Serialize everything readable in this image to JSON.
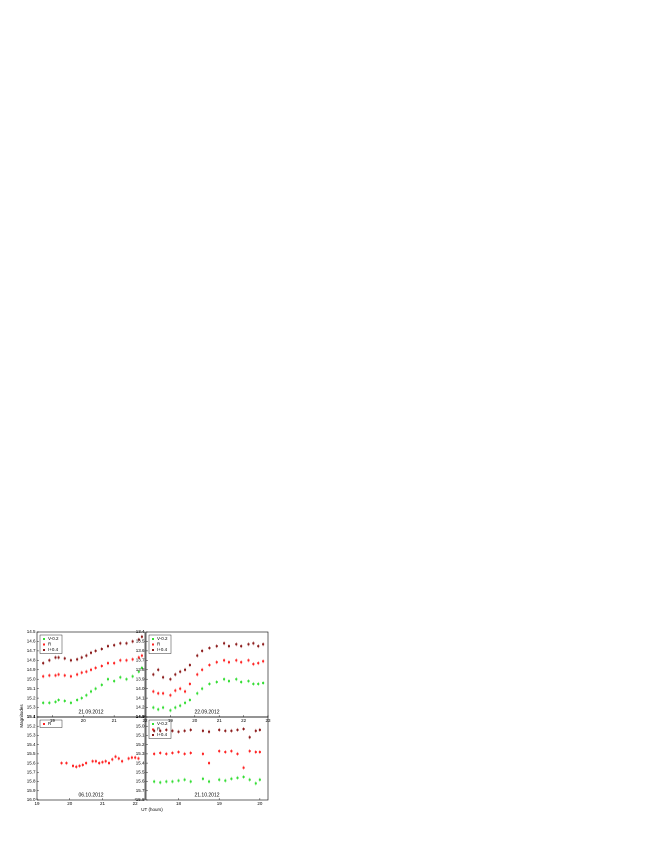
{
  "chart_data": [
    {
      "type": "scatter",
      "annotation": "21.09.2012",
      "ylabel": "Magnitudes",
      "legend": "upper left",
      "xlim": [
        18.5,
        22.0
      ],
      "xticks": [
        19,
        20,
        21,
        22
      ],
      "ylim": [
        15.4,
        14.5
      ],
      "yticks": [
        14.5,
        14.6,
        14.7,
        14.8,
        14.9,
        {
          "value": 15,
          "label": "15.0"
        },
        15.1,
        15.2,
        15.3,
        15.4
      ],
      "series": [
        {
          "name": "V-0.2",
          "color": "#33dd33",
          "x": [
            18.7,
            18.9,
            19.1,
            19.2,
            19.4,
            19.6,
            19.8,
            19.95,
            20.1,
            20.25,
            20.4,
            20.6,
            20.8,
            21.0,
            21.2,
            21.4,
            21.6,
            21.8,
            21.9
          ],
          "values": [
            15.25,
            15.25,
            15.24,
            15.22,
            15.23,
            15.25,
            15.22,
            15.2,
            15.17,
            15.13,
            15.1,
            15.06,
            15.0,
            15.02,
            14.98,
            15.0,
            14.97,
            14.92,
            14.88
          ]
        },
        {
          "name": "R",
          "color": "#ff2222",
          "x": [
            18.7,
            18.9,
            19.1,
            19.2,
            19.4,
            19.6,
            19.8,
            19.95,
            20.1,
            20.25,
            20.4,
            20.6,
            20.8,
            21.0,
            21.2,
            21.4,
            21.6,
            21.8,
            21.9
          ],
          "values": [
            14.97,
            14.96,
            14.96,
            14.95,
            14.96,
            14.97,
            14.95,
            14.93,
            14.92,
            14.9,
            14.88,
            14.86,
            14.83,
            14.83,
            14.8,
            14.8,
            14.79,
            14.77,
            14.75
          ]
        },
        {
          "name": "I+0.4",
          "color": "#8b1a1a",
          "x": [
            18.7,
            18.9,
            19.1,
            19.2,
            19.4,
            19.6,
            19.8,
            19.95,
            20.1,
            20.25,
            20.4,
            20.6,
            20.8,
            21.0,
            21.2,
            21.4,
            21.6,
            21.8,
            21.9
          ],
          "values": [
            14.83,
            14.8,
            14.77,
            14.77,
            14.78,
            14.8,
            14.79,
            14.77,
            14.75,
            14.72,
            14.7,
            14.68,
            14.65,
            14.64,
            14.62,
            14.62,
            14.6,
            14.58,
            14.55
          ]
        }
      ]
    },
    {
      "type": "scatter",
      "annotation": "22.09.2012",
      "legend": "upper left",
      "xlim": [
        18.0,
        23.0
      ],
      "xticks": [
        19,
        20,
        21,
        22,
        23
      ],
      "ylim": [
        14.3,
        13.4
      ],
      "yticks": [
        13.4,
        13.5,
        13.6,
        13.7,
        13.8,
        13.9,
        {
          "value": 14,
          "label": "14.0"
        },
        14.1,
        14.2,
        14.3
      ],
      "series": [
        {
          "name": "V-0.2",
          "color": "#33dd33",
          "x": [
            18.3,
            18.5,
            18.7,
            19.0,
            19.2,
            19.4,
            19.6,
            19.8,
            20.1,
            20.3,
            20.6,
            20.9,
            21.2,
            21.4,
            21.7,
            21.9,
            22.2,
            22.4,
            22.6,
            22.8
          ],
          "values": [
            14.2,
            14.22,
            14.2,
            14.23,
            14.2,
            14.18,
            14.15,
            14.12,
            14.05,
            14.0,
            13.95,
            13.93,
            13.9,
            13.92,
            13.9,
            13.93,
            13.92,
            13.95,
            13.95,
            13.94
          ]
        },
        {
          "name": "R",
          "color": "#ff2222",
          "x": [
            18.3,
            18.5,
            18.7,
            19.0,
            19.2,
            19.4,
            19.6,
            19.8,
            20.1,
            20.3,
            20.6,
            20.9,
            21.2,
            21.4,
            21.7,
            21.9,
            22.2,
            22.4,
            22.6,
            22.8
          ],
          "values": [
            14.03,
            14.05,
            14.05,
            14.07,
            14.02,
            14.0,
            14.03,
            13.95,
            13.85,
            13.8,
            13.75,
            13.72,
            13.7,
            13.72,
            13.7,
            13.72,
            13.7,
            13.74,
            13.73,
            13.71
          ]
        },
        {
          "name": "I+0.4",
          "color": "#8b1a1a",
          "x": [
            18.3,
            18.5,
            18.7,
            19.0,
            19.2,
            19.4,
            19.6,
            19.8,
            20.1,
            20.3,
            20.6,
            20.9,
            21.2,
            21.4,
            21.7,
            21.9,
            22.2,
            22.4,
            22.6,
            22.8
          ],
          "values": [
            13.85,
            13.8,
            13.88,
            13.9,
            13.85,
            13.82,
            13.8,
            13.75,
            13.65,
            13.6,
            13.57,
            13.55,
            13.52,
            13.55,
            13.53,
            13.55,
            13.53,
            13.52,
            13.55,
            13.53
          ]
        }
      ]
    },
    {
      "type": "scatter",
      "annotation": "06.10.2012",
      "xlabel": "UT (hours)",
      "legend": "upper left",
      "xlim": [
        19.0,
        22.3
      ],
      "xticks": [
        19,
        20,
        21,
        22
      ],
      "ylim": [
        16.0,
        15.1
      ],
      "yticks": [
        15.1,
        15.2,
        15.3,
        15.4,
        15.5,
        15.6,
        15.7,
        15.8,
        15.9,
        {
          "value": 16,
          "label": "16.0"
        }
      ],
      "series": [
        {
          "name": "R",
          "color": "#ff2222",
          "x": [
            19.75,
            19.9,
            20.1,
            20.2,
            20.3,
            20.4,
            20.5,
            20.7,
            20.8,
            20.9,
            21.0,
            21.1,
            21.2,
            21.3,
            21.4,
            21.5,
            21.6,
            21.8,
            21.9,
            22.0,
            22.1
          ],
          "values": [
            15.6,
            15.6,
            15.63,
            15.64,
            15.63,
            15.62,
            15.6,
            15.58,
            15.58,
            15.6,
            15.59,
            15.58,
            15.6,
            15.56,
            15.53,
            15.55,
            15.58,
            15.55,
            15.54,
            15.54,
            15.55
          ]
        }
      ]
    },
    {
      "type": "scatter",
      "annotation": "21.10.2012",
      "legend": "upper left",
      "xlim": [
        17.2,
        20.2
      ],
      "xticks": [
        18,
        19,
        20
      ],
      "ylim": [
        15.8,
        14.9
      ],
      "yticks": [
        14.9,
        {
          "value": 15,
          "label": "15.0"
        },
        15.1,
        15.2,
        15.3,
        15.4,
        15.5,
        15.6,
        15.7,
        15.8
      ],
      "series": [
        {
          "name": "V-0.2",
          "color": "#33dd33",
          "x": [
            17.4,
            17.55,
            17.7,
            17.85,
            18.0,
            18.15,
            18.3,
            18.6,
            18.75,
            19.0,
            19.15,
            19.3,
            19.45,
            19.6,
            19.75,
            19.9,
            20.0
          ],
          "values": [
            15.6,
            15.61,
            15.6,
            15.6,
            15.59,
            15.58,
            15.6,
            15.57,
            15.6,
            15.58,
            15.59,
            15.57,
            15.56,
            15.55,
            15.58,
            15.62,
            15.58
          ]
        },
        {
          "name": "R",
          "color": "#ff2222",
          "x": [
            17.4,
            17.55,
            17.7,
            17.85,
            18.0,
            18.15,
            18.3,
            18.6,
            18.75,
            19.0,
            19.15,
            19.3,
            19.45,
            19.6,
            19.75,
            19.9,
            20.0
          ],
          "values": [
            15.3,
            15.29,
            15.3,
            15.29,
            15.28,
            15.3,
            15.29,
            15.3,
            15.4,
            15.27,
            15.28,
            15.27,
            15.3,
            15.45,
            15.27,
            15.28,
            15.28
          ]
        },
        {
          "name": "I+0.4",
          "color": "#8b1a1a",
          "x": [
            17.4,
            17.55,
            17.7,
            17.85,
            18.0,
            18.15,
            18.3,
            18.6,
            18.75,
            19.0,
            19.15,
            19.3,
            19.45,
            19.6,
            19.75,
            19.9,
            20.0
          ],
          "values": [
            15.05,
            15.05,
            15.04,
            15.05,
            15.06,
            15.05,
            15.04,
            15.05,
            15.06,
            15.04,
            15.05,
            15.05,
            15.04,
            15.03,
            15.12,
            15.05,
            15.04
          ]
        }
      ]
    }
  ]
}
